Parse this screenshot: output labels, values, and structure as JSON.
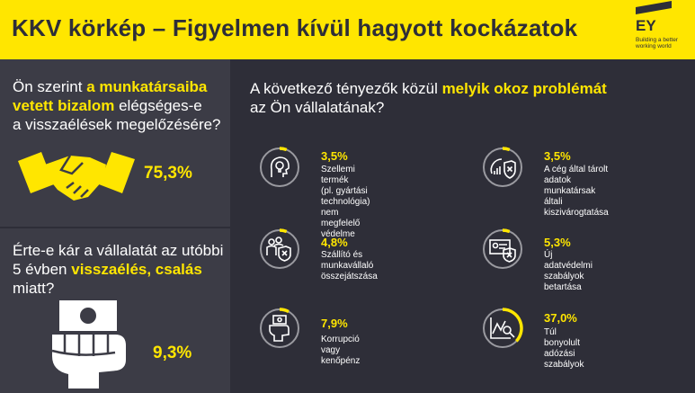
{
  "header": {
    "title": "KKV körkép – Figyelmen kívül hagyott kockázatok",
    "logo": {
      "text": "EY",
      "tagline_1": "Building a better",
      "tagline_2": "working world"
    }
  },
  "left_panel": {
    "q1": {
      "l1_a": "Ön szerint ",
      "l1_b": "a munkatársaiba",
      "l2_a": "vetett bizalom",
      "l2_b": " elégséges-e",
      "l3": "a visszaélések megelőzésére?",
      "value": "75,3%",
      "icon": "handshake-icon"
    },
    "q2": {
      "l1": "Érte-e kár a vállalatát az utóbbi",
      "l2_a": "5 évben ",
      "l2_b": "visszaélés, csalás",
      "l3": "miatt?",
      "value": "9,3%",
      "icon": "hand-cash-icon"
    }
  },
  "right_panel": {
    "q_a": "A következő tényezők közül ",
    "q_b": "melyik okoz problémát",
    "q_c": "az Ön vállalatának?",
    "items": [
      {
        "value": "3,5%",
        "fraction": 0.035,
        "line1": "Szellemi termék",
        "line2": "(pl. gyártási technológia)",
        "line3": "nem megfelelő védelme",
        "icon": "lightbulb-head-icon"
      },
      {
        "value": "3,5%",
        "fraction": 0.035,
        "line1": "A cég által tárolt adatok",
        "line2": "munkatársak általi",
        "line3": "kiszivárogtatása",
        "icon": "data-shield-icon"
      },
      {
        "value": "4,8%",
        "fraction": 0.048,
        "line1": "Szállító és munkavállaló",
        "line2": "összejátszása",
        "line3": "",
        "icon": "people-shield-icon"
      },
      {
        "value": "5,3%",
        "fraction": 0.053,
        "line1": "Új adatvédelmi",
        "line2": "szabályok betartása",
        "line3": "",
        "icon": "id-shield-icon"
      },
      {
        "value": "7,9%",
        "fraction": 0.079,
        "line1": "Korrupció vagy kenőpénz",
        "line2": "",
        "line3": "",
        "icon": "hand-money-icon"
      },
      {
        "value": "37,0%",
        "fraction": 0.37,
        "line1": "Túl bonyolult",
        "line2": "adózási szabályok",
        "line3": "",
        "icon": "chart-magnifier-icon"
      }
    ]
  },
  "colors": {
    "accent": "#ffe600",
    "dark": "#2e2e38",
    "panel": "#3c3c46",
    "ring": "#9a9aa0"
  }
}
